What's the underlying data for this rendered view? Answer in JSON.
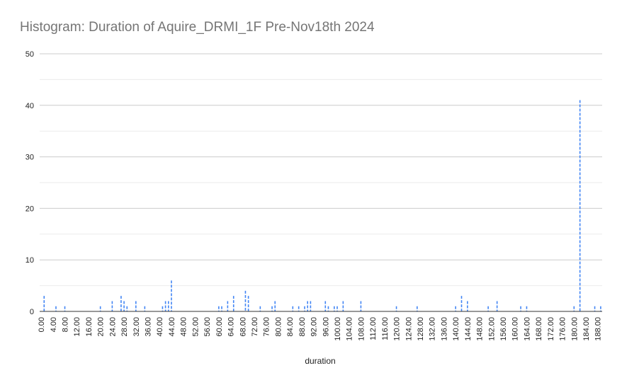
{
  "chart_data": {
    "type": "bar",
    "title": "Histogram: Duration of Aquire_DRMI_1F Pre-Nov18th 2024",
    "xlabel": "duration",
    "ylabel": "",
    "ylim": [
      0,
      50
    ],
    "yticks": [
      "0",
      "10",
      "20",
      "30",
      "40",
      "50"
    ],
    "xlim": [
      0,
      190
    ],
    "bin_width": 1,
    "xtick_labels": [
      "0.00",
      "4.00",
      "8.00",
      "12.00",
      "16.00",
      "20.00",
      "24.00",
      "28.00",
      "32.00",
      "36.00",
      "40.00",
      "44.00",
      "48.00",
      "52.00",
      "56.00",
      "60.00",
      "64.00",
      "68.00",
      "72.00",
      "76.00",
      "80.00",
      "84.00",
      "88.00",
      "92.00",
      "96.00",
      "100.00",
      "104.00",
      "108.00",
      "112.00",
      "116.00",
      "120.00",
      "124.00",
      "128.00",
      "132.00",
      "136.00",
      "140.00",
      "144.00",
      "148.00",
      "152.00",
      "156.00",
      "160.00",
      "164.00",
      "168.00",
      "172.00",
      "176.00",
      "180.00",
      "184.00",
      "188.00"
    ],
    "bars": [
      {
        "x": 1,
        "y": 3
      },
      {
        "x": 5,
        "y": 1
      },
      {
        "x": 8,
        "y": 1
      },
      {
        "x": 20,
        "y": 1
      },
      {
        "x": 24,
        "y": 2
      },
      {
        "x": 27,
        "y": 3
      },
      {
        "x": 28,
        "y": 2
      },
      {
        "x": 29,
        "y": 1
      },
      {
        "x": 32,
        "y": 2
      },
      {
        "x": 35,
        "y": 1
      },
      {
        "x": 41,
        "y": 1
      },
      {
        "x": 42,
        "y": 2
      },
      {
        "x": 43,
        "y": 2
      },
      {
        "x": 44,
        "y": 6
      },
      {
        "x": 60,
        "y": 1
      },
      {
        "x": 61,
        "y": 1
      },
      {
        "x": 63,
        "y": 2
      },
      {
        "x": 65,
        "y": 3
      },
      {
        "x": 69,
        "y": 4
      },
      {
        "x": 70,
        "y": 3
      },
      {
        "x": 74,
        "y": 1
      },
      {
        "x": 78,
        "y": 1
      },
      {
        "x": 79,
        "y": 2
      },
      {
        "x": 85,
        "y": 1
      },
      {
        "x": 87,
        "y": 1
      },
      {
        "x": 89,
        "y": 1
      },
      {
        "x": 90,
        "y": 2
      },
      {
        "x": 91,
        "y": 2
      },
      {
        "x": 96,
        "y": 2
      },
      {
        "x": 97,
        "y": 1
      },
      {
        "x": 99,
        "y": 1
      },
      {
        "x": 100,
        "y": 1
      },
      {
        "x": 102,
        "y": 2
      },
      {
        "x": 108,
        "y": 2
      },
      {
        "x": 120,
        "y": 1
      },
      {
        "x": 127,
        "y": 1
      },
      {
        "x": 140,
        "y": 1
      },
      {
        "x": 142,
        "y": 3
      },
      {
        "x": 144,
        "y": 2
      },
      {
        "x": 151,
        "y": 1
      },
      {
        "x": 154,
        "y": 2
      },
      {
        "x": 162,
        "y": 1
      },
      {
        "x": 164,
        "y": 1
      },
      {
        "x": 180,
        "y": 1
      },
      {
        "x": 182,
        "y": 41
      },
      {
        "x": 187,
        "y": 1
      },
      {
        "x": 189,
        "y": 1
      }
    ],
    "bar_color": "#4285f4",
    "grid": true,
    "minor_grid": true,
    "legend": "none"
  }
}
